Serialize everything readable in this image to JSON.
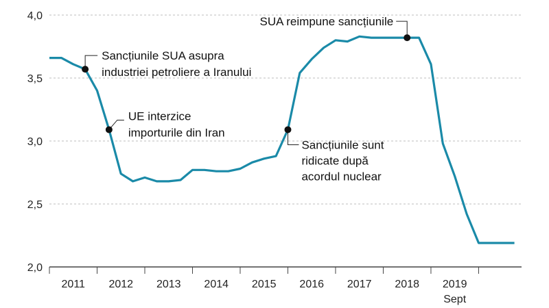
{
  "chart_data": {
    "type": "line",
    "title": "",
    "xlabel": "",
    "ylabel": "",
    "ylim": [
      2.0,
      4.0
    ],
    "yticks": [
      "2,0",
      "2,5",
      "3,0",
      "3,5",
      "4,0"
    ],
    "ytick_values": [
      2.0,
      2.5,
      3.0,
      3.5,
      4.0
    ],
    "xlim": [
      2010.0,
      2019.9
    ],
    "year_labels": [
      "2011",
      "2012",
      "2013",
      "2014",
      "2015",
      "2016",
      "2017",
      "2018",
      "2019"
    ],
    "year_label_positions": [
      2010.5,
      2011.5,
      2012.5,
      2013.5,
      2014.5,
      2015.5,
      2016.5,
      2017.5,
      2018.5
    ],
    "last_sublabel": "Sept",
    "grid": true,
    "line_color": "#1a8aa8",
    "series": [
      {
        "x": [
          2010.0,
          2010.25,
          2010.5,
          2010.75,
          2011.0,
          2011.25,
          2011.5,
          2011.75,
          2012.0,
          2012.25,
          2012.5,
          2012.75,
          2013.0,
          2013.25,
          2013.5,
          2013.75,
          2014.0,
          2014.25,
          2014.5,
          2014.75,
          2015.0,
          2015.25,
          2015.5,
          2015.75,
          2016.0,
          2016.25,
          2016.5,
          2016.75,
          2017.0,
          2017.25,
          2017.5,
          2017.75,
          2018.0,
          2018.25,
          2018.5,
          2018.75,
          2019.0,
          2019.25,
          2019.5,
          2019.75
        ],
        "values": [
          3.66,
          3.66,
          3.61,
          3.57,
          3.4,
          3.09,
          2.74,
          2.68,
          2.71,
          2.68,
          2.68,
          2.69,
          2.77,
          2.77,
          2.76,
          2.76,
          2.78,
          2.83,
          2.86,
          2.88,
          3.09,
          3.54,
          3.65,
          3.74,
          3.8,
          3.79,
          3.83,
          3.82,
          3.82,
          3.82,
          3.82,
          3.82,
          3.61,
          2.98,
          2.72,
          2.42,
          2.19,
          2.19,
          2.19,
          2.19
        ]
      }
    ],
    "annotations": [
      {
        "x": 2010.75,
        "y": 3.57,
        "lines": [
          "Sancțiunile SUA asupra",
          "industriei petroliere a Iranului"
        ]
      },
      {
        "x": 2011.25,
        "y": 3.09,
        "lines": [
          "UE interzice",
          "importurile din Iran"
        ]
      },
      {
        "x": 2015.0,
        "y": 3.09,
        "lines": [
          "Sancțiunile sunt",
          "ridicate după",
          "acordul nuclear"
        ]
      },
      {
        "x": 2017.5,
        "y": 3.82,
        "lines": [
          "SUA reimpune sancțiunile"
        ]
      }
    ]
  }
}
